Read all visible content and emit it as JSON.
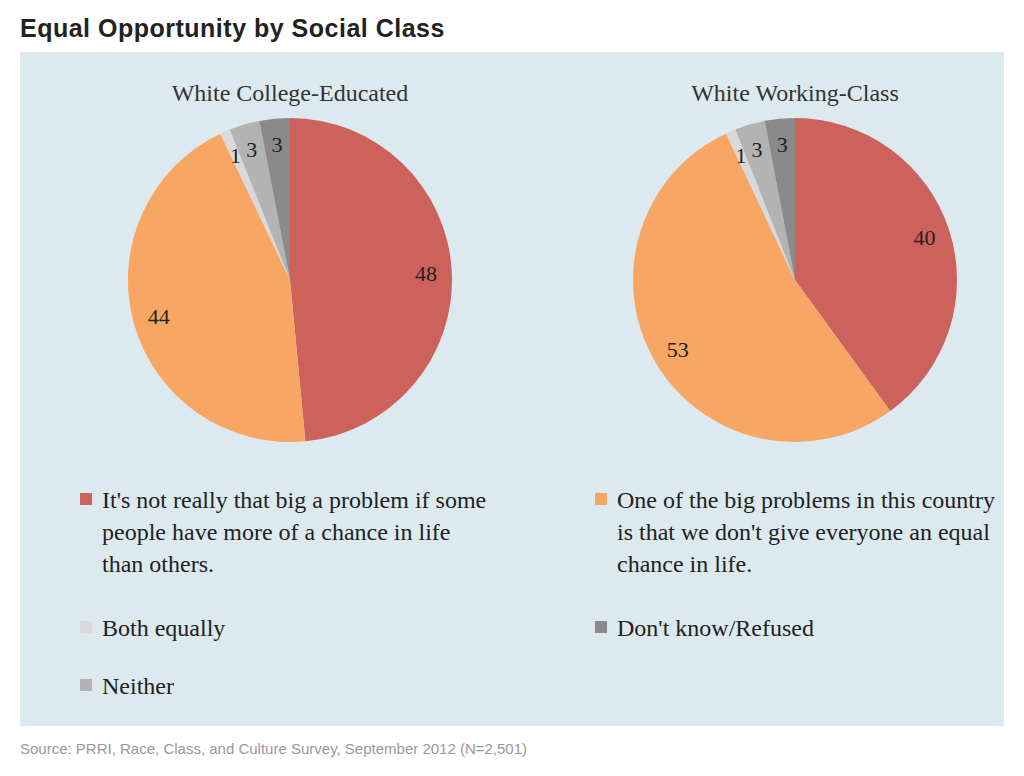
{
  "title": "Equal Opportunity by Social Class",
  "source": "Source: PRRI, Race, Class, and Culture Survey, September 2012 (N=2,501)",
  "chart_data": [
    {
      "type": "pie",
      "title": "White College-Educated",
      "categories": [
        "It's not really that big a problem if some people have more of a chance in life than others.",
        "One of the big problems in this country is that we don't give everyone an equal chance in life.",
        "Both equally",
        "Neither",
        "Don't know/Refused"
      ],
      "values": [
        48,
        44,
        1,
        3,
        3
      ],
      "colors": [
        "#cd625c",
        "#f7a663",
        "#d9d9d9",
        "#b3b3b3",
        "#8a8a8a"
      ],
      "data_labels": true,
      "legend": "bottom"
    },
    {
      "type": "pie",
      "title": "White Working-Class",
      "categories": [
        "It's not really that big a problem if some people have more of a chance in life than others.",
        "One of the big problems in this country is that we don't give everyone an equal chance in life.",
        "Both equally",
        "Neither",
        "Don't know/Refused"
      ],
      "values": [
        40,
        53,
        1,
        3,
        3
      ],
      "colors": [
        "#cd625c",
        "#f7a663",
        "#d9d9d9",
        "#b3b3b3",
        "#8a8a8a"
      ],
      "data_labels": true,
      "legend": "bottom"
    }
  ]
}
